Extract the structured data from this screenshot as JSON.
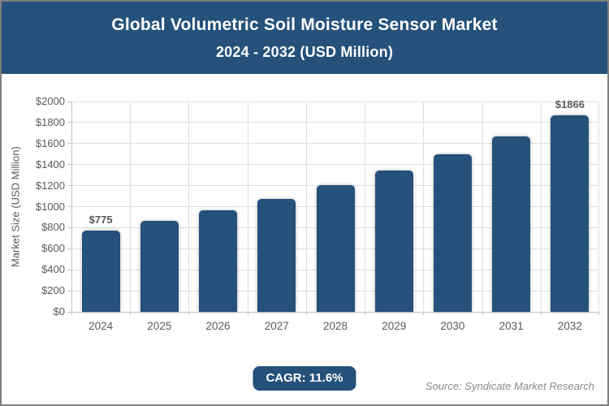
{
  "header": {
    "title_line1": "Global Volumetric Soil Moisture Sensor Market",
    "title_line2": "2024 - 2032 (USD Million)"
  },
  "chart_data": {
    "type": "bar",
    "title": "Global Volumetric Soil Moisture Sensor Market 2024 - 2032 (USD Million)",
    "categories": [
      "2024",
      "2025",
      "2026",
      "2027",
      "2028",
      "2029",
      "2030",
      "2031",
      "2032"
    ],
    "values": [
      775,
      865,
      965,
      1077,
      1202,
      1341,
      1497,
      1671,
      1866
    ],
    "data_labels": [
      "$775",
      null,
      null,
      null,
      null,
      null,
      null,
      null,
      "$1866"
    ],
    "xlabel": "",
    "ylabel": "Market Size (USD Million)",
    "ylim": [
      0,
      2000
    ],
    "ytick_step": 200,
    "ytick_labels": [
      "$0",
      "$200",
      "$400",
      "$600",
      "$800",
      "$1000",
      "$1200",
      "$1400",
      "$1600",
      "$1800",
      "$2000"
    ],
    "grid": true,
    "legend": false,
    "bar_color": "#25517b"
  },
  "footer": {
    "cagr_label": "CAGR: 11.6%",
    "source": "Source: Syndicate Market Research"
  },
  "colors": {
    "accent": "#25517b",
    "bar": "#25517b",
    "grid": "#dedede",
    "axis": "#c2c2c2",
    "text_muted": "#595959",
    "source_text": "#8a8a8a",
    "border": "#7f7f7f",
    "background": "#ffffff",
    "title_text": "#ffffff"
  }
}
